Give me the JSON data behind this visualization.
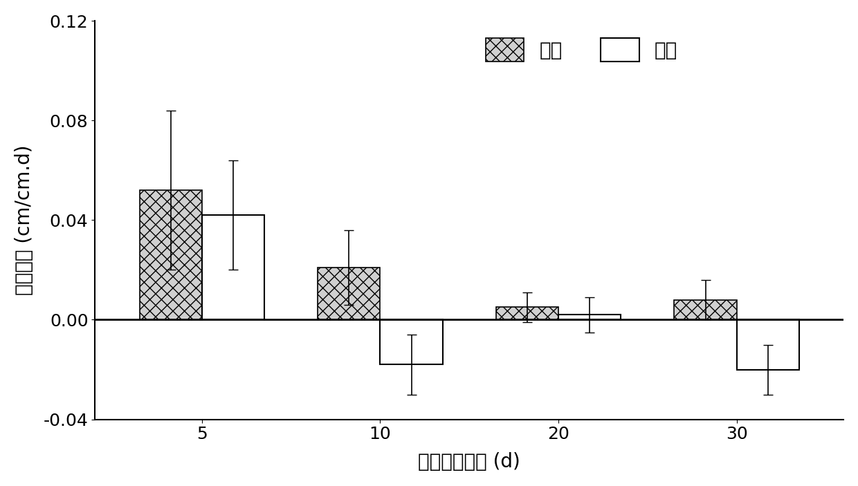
{
  "categories": [
    5,
    10,
    20,
    30
  ],
  "control_values": [
    0.052,
    0.021,
    0.005,
    0.008
  ],
  "flood_values": [
    0.042,
    -0.018,
    0.002,
    -0.02
  ],
  "control_errors": [
    0.032,
    0.015,
    0.006,
    0.008
  ],
  "flood_errors": [
    0.022,
    0.012,
    0.007,
    0.01
  ],
  "xlabel": "水淤持续时间 (d)",
  "ylabel": "生长速率 (cm/cm.d)",
  "legend_control": "对照",
  "legend_flood": "水淤",
  "ylim_min": -0.04,
  "ylim_max": 0.12,
  "yticks": [
    -0.04,
    0.0,
    0.04,
    0.08,
    0.12
  ],
  "bar_width": 0.35,
  "background_color": "#ffffff",
  "hatch_pattern": "xx",
  "control_facecolor": "#d0d0d0",
  "flood_facecolor": "#ffffff",
  "edgecolor": "#000000"
}
